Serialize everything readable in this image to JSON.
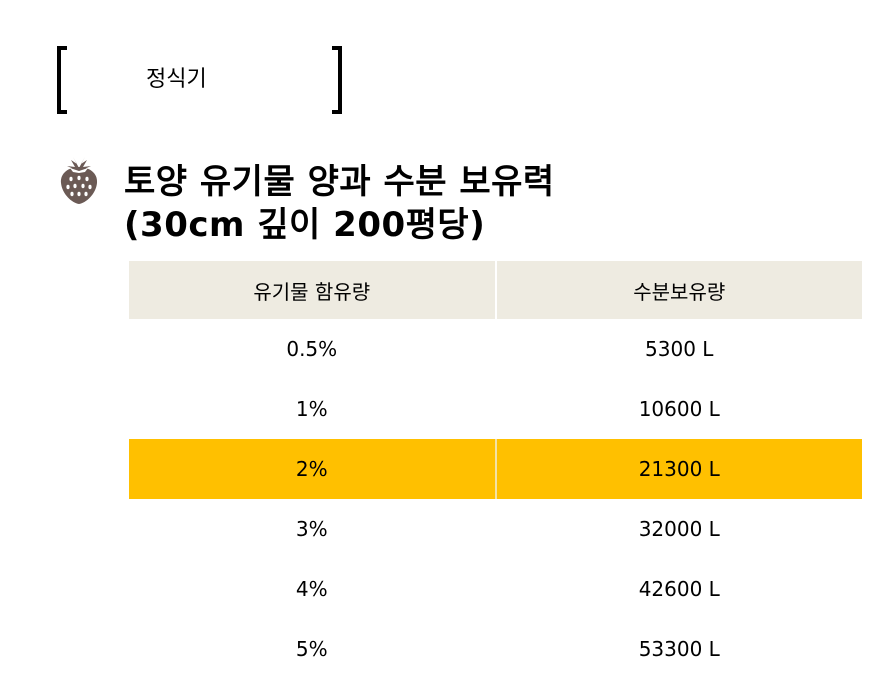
{
  "section": {
    "label": "정식기"
  },
  "title": {
    "line1": "토양 유기물 양과 수분 보유력",
    "line2": "(30cm 깊이 200평당)"
  },
  "table": {
    "headers": [
      "유기물 함유량",
      "수분보유량"
    ],
    "rows": [
      {
        "organic": "0.5%",
        "water": "5300 L",
        "highlighted": false
      },
      {
        "organic": "1%",
        "water": "10600 L",
        "highlighted": false
      },
      {
        "organic": "2%",
        "water": "21300 L",
        "highlighted": true
      },
      {
        "organic": "3%",
        "water": "32000 L",
        "highlighted": false
      },
      {
        "organic": "4%",
        "water": "42600 L",
        "highlighted": false
      },
      {
        "organic": "5%",
        "water": "53300 L",
        "highlighted": false
      }
    ]
  },
  "colors": {
    "header_bg": "#eeebe1",
    "highlight_bg": "#ffc000",
    "icon": "#6b5a55"
  },
  "icons": {
    "bullet": "strawberry-icon"
  }
}
